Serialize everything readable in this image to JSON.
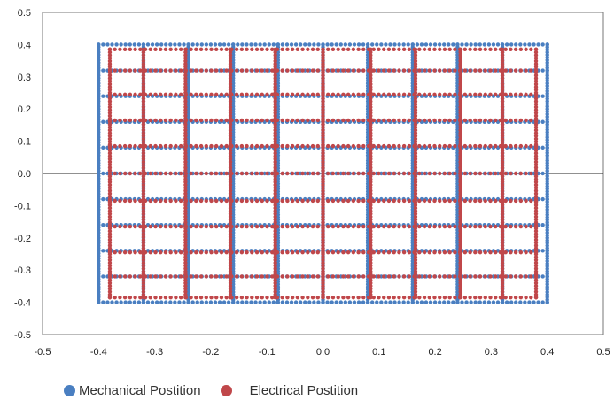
{
  "chart_data": {
    "type": "scatter",
    "title": "",
    "xlabel": "",
    "ylabel": "",
    "xlim": [
      -0.5,
      0.5
    ],
    "ylim": [
      -0.5,
      0.5
    ],
    "xticks": [
      -0.5,
      -0.4,
      -0.3,
      -0.2,
      -0.1,
      0.0,
      0.1,
      0.2,
      0.3,
      0.4,
      0.5
    ],
    "yticks": [
      -0.5,
      -0.4,
      -0.3,
      -0.2,
      -0.1,
      0.0,
      0.1,
      0.2,
      0.3,
      0.4,
      0.5
    ],
    "xtick_labels": [
      "-0.5",
      "-0.4",
      "-0.3",
      "-0.2",
      "-0.1",
      "0.0",
      "0.1",
      "0.2",
      "0.3",
      "0.4",
      "0.5"
    ],
    "ytick_labels": [
      "-0.5",
      "-0.4",
      "-0.3",
      "-0.2",
      "-0.1",
      "0.0",
      "0.1",
      "0.2",
      "0.3",
      "0.4",
      "0.5"
    ],
    "grid": false,
    "zero_axes": true,
    "legend_position": "bottom",
    "series": [
      {
        "name": "Mechanical Postition",
        "color": "#4a7fc1",
        "grid_lines_x": [
          -0.4,
          -0.32,
          -0.24,
          -0.16,
          -0.08,
          0.0,
          0.08,
          0.16,
          0.24,
          0.32,
          0.4
        ],
        "grid_lines_y": [
          -0.4,
          -0.32,
          -0.24,
          -0.16,
          -0.08,
          0.0,
          0.08,
          0.16,
          0.24,
          0.32,
          0.4
        ],
        "point_spacing": 0.008,
        "extent": [
          -0.4,
          0.4,
          -0.4,
          0.4
        ]
      },
      {
        "name": "Electrical Postition",
        "color": "#c0474a",
        "grid_lines_x": [
          -0.38,
          -0.32,
          -0.245,
          -0.165,
          -0.085,
          0.0,
          0.085,
          0.165,
          0.245,
          0.32,
          0.38
        ],
        "grid_lines_y": [
          -0.385,
          -0.32,
          -0.245,
          -0.165,
          -0.085,
          0.0,
          0.085,
          0.165,
          0.245,
          0.32,
          0.385
        ],
        "point_spacing": 0.009,
        "extent": [
          -0.38,
          0.38,
          -0.385,
          0.385
        ]
      }
    ]
  }
}
